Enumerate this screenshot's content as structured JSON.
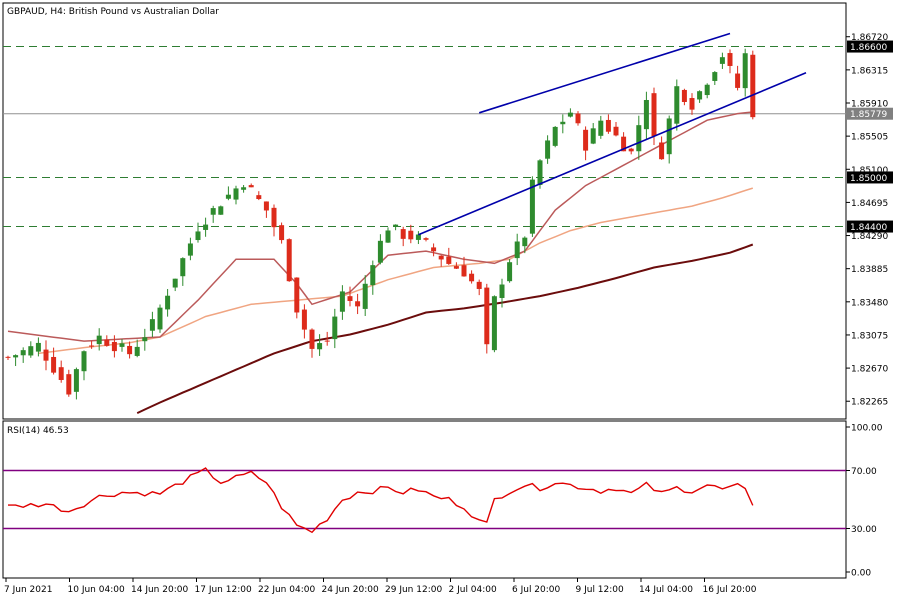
{
  "chart_data": {
    "type": "candlestick",
    "symbol": "GBPAUD",
    "timeframe": "H4",
    "description": "British Pound vs Australian Dollar",
    "header_title": "GBPAUD, H4:  British Pound vs Australian Dollar",
    "ylim": [
      1.8206,
      1.8712
    ],
    "price_ticks": [
      "1.86720",
      "1.86315",
      "1.85910",
      "1.85505",
      "1.85100",
      "1.84695",
      "1.84290",
      "1.83885",
      "1.83480",
      "1.83075",
      "1.82670",
      "1.82265"
    ],
    "x_tick_labels": [
      "7 Jun 2021",
      "10 Jun 04:00",
      "14 Jun 20:00",
      "17 Jun 12:00",
      "22 Jun 04:00",
      "24 Jun 20:00",
      "29 Jun 12:00",
      "2 Jul 04:00",
      "6 Jul 20:00",
      "9 Jul 12:00",
      "14 Jul 04:00",
      "16 Jul 20:00"
    ],
    "grid": false,
    "horizontal_levels": [
      {
        "label": "1.86600",
        "value": 1.866,
        "style": "dashed",
        "color": "#2e7d32",
        "label_bg": "#000000",
        "label_fg": "#ffffff"
      },
      {
        "label": "1.85779",
        "value": 1.85779,
        "style": "solid",
        "color": "#909090",
        "label_bg": "#808080",
        "label_fg": "#ffffff"
      },
      {
        "label": "1.85000",
        "value": 1.85,
        "style": "dashed",
        "color": "#2e7d32",
        "label_bg": "#000000",
        "label_fg": "#ffffff"
      },
      {
        "label": "1.84400",
        "value": 1.844,
        "style": "dashed",
        "color": "#2e7d32",
        "label_bg": "#000000",
        "label_fg": "#ffffff"
      }
    ],
    "candle_colors": {
      "up": "#2e8b2e",
      "down": "#dd2b1b"
    },
    "ma_colors": {
      "ma_fast": "#bb5a5a",
      "ma_mid": "#f0a582",
      "ma_slow": "#6b0c0c"
    },
    "channel_color": "#0000aa",
    "channel_lines": {
      "upper": {
        "from": [
          62,
          1.8579
        ],
        "to": [
          95,
          1.8676
        ]
      },
      "lower": {
        "from": [
          54,
          1.843
        ],
        "to": [
          105,
          1.8628
        ]
      }
    },
    "anchors": {
      "close": [
        [
          0,
          1.828
        ],
        [
          4,
          1.8295
        ],
        [
          8,
          1.824
        ],
        [
          10,
          1.829
        ],
        [
          12,
          1.8305
        ],
        [
          16,
          1.8285
        ],
        [
          19,
          1.832
        ],
        [
          22,
          1.838
        ],
        [
          25,
          1.844
        ],
        [
          28,
          1.847
        ],
        [
          31,
          1.8495
        ],
        [
          34,
          1.846
        ],
        [
          36,
          1.842
        ],
        [
          38,
          1.834
        ],
        [
          40,
          1.829
        ],
        [
          42,
          1.83
        ],
        [
          44,
          1.836
        ],
        [
          46,
          1.834
        ],
        [
          48,
          1.84
        ],
        [
          50,
          1.844
        ],
        [
          52,
          1.843
        ],
        [
          54,
          1.8425
        ],
        [
          56,
          1.841
        ],
        [
          58,
          1.8395
        ],
        [
          60,
          1.8385
        ],
        [
          62,
          1.836
        ],
        [
          63,
          1.829
        ],
        [
          64,
          1.835
        ],
        [
          66,
          1.84
        ],
        [
          68,
          1.843
        ],
        [
          69,
          1.849
        ],
        [
          70,
          1.852
        ],
        [
          72,
          1.856
        ],
        [
          74,
          1.858
        ],
        [
          76,
          1.854
        ],
        [
          78,
          1.857
        ],
        [
          80,
          1.855
        ],
        [
          82,
          1.853
        ],
        [
          84,
          1.86
        ],
        [
          85,
          1.8545
        ],
        [
          86,
          1.853
        ],
        [
          88,
          1.861
        ],
        [
          90,
          1.859
        ],
        [
          92,
          1.862
        ],
        [
          94,
          1.865
        ],
        [
          95,
          1.863
        ],
        [
          96,
          1.861
        ],
        [
          97,
          1.865
        ],
        [
          98,
          1.858
        ]
      ],
      "ma_fast": [
        [
          0,
          1.8312
        ],
        [
          10,
          1.83
        ],
        [
          20,
          1.8305
        ],
        [
          25,
          1.835
        ],
        [
          30,
          1.84
        ],
        [
          35,
          1.84
        ],
        [
          38,
          1.837
        ],
        [
          40,
          1.8345
        ],
        [
          45,
          1.836
        ],
        [
          50,
          1.8405
        ],
        [
          55,
          1.841
        ],
        [
          60,
          1.84
        ],
        [
          64,
          1.8395
        ],
        [
          68,
          1.841
        ],
        [
          72,
          1.846
        ],
        [
          76,
          1.849
        ],
        [
          80,
          1.851
        ],
        [
          84,
          1.853
        ],
        [
          88,
          1.855
        ],
        [
          92,
          1.857
        ],
        [
          96,
          1.8578
        ],
        [
          98,
          1.858
        ]
      ],
      "ma_mid": [
        [
          4,
          1.8285
        ],
        [
          10,
          1.8292
        ],
        [
          16,
          1.8298
        ],
        [
          20,
          1.8305
        ],
        [
          26,
          1.833
        ],
        [
          32,
          1.8345
        ],
        [
          38,
          1.835
        ],
        [
          44,
          1.8355
        ],
        [
          50,
          1.8375
        ],
        [
          56,
          1.839
        ],
        [
          62,
          1.8395
        ],
        [
          66,
          1.84
        ],
        [
          70,
          1.842
        ],
        [
          74,
          1.8435
        ],
        [
          78,
          1.8445
        ],
        [
          84,
          1.8455
        ],
        [
          90,
          1.8465
        ],
        [
          94,
          1.8475
        ],
        [
          98,
          1.8487
        ]
      ],
      "ma_slow": [
        [
          17,
          1.8212
        ],
        [
          20,
          1.8225
        ],
        [
          25,
          1.8245
        ],
        [
          30,
          1.8265
        ],
        [
          35,
          1.8285
        ],
        [
          40,
          1.83
        ],
        [
          45,
          1.8308
        ],
        [
          50,
          1.832
        ],
        [
          55,
          1.8335
        ],
        [
          60,
          1.834
        ],
        [
          65,
          1.8347
        ],
        [
          70,
          1.8355
        ],
        [
          75,
          1.8365
        ],
        [
          80,
          1.8377
        ],
        [
          85,
          1.839
        ],
        [
          90,
          1.8398
        ],
        [
          95,
          1.8408
        ],
        [
          98,
          1.8418
        ]
      ]
    },
    "rsi": {
      "label": "RSI(14) 46.53",
      "period": 14,
      "last": 46.53,
      "ylim": [
        0,
        100
      ],
      "ticks": [
        "100.00",
        "70.00",
        "30.00",
        "0.00"
      ],
      "levels": [
        70,
        30
      ],
      "line_color": "#e00000",
      "level_color": "#800080",
      "anchors": [
        [
          0,
          45
        ],
        [
          5,
          47
        ],
        [
          8,
          42
        ],
        [
          12,
          52
        ],
        [
          15,
          55
        ],
        [
          20,
          54
        ],
        [
          24,
          65
        ],
        [
          26,
          70
        ],
        [
          28,
          62
        ],
        [
          32,
          68
        ],
        [
          34,
          62
        ],
        [
          36,
          45
        ],
        [
          38,
          32
        ],
        [
          40,
          28
        ],
        [
          42,
          37
        ],
        [
          44,
          50
        ],
        [
          46,
          55
        ],
        [
          48,
          56
        ],
        [
          50,
          58
        ],
        [
          52,
          55
        ],
        [
          54,
          57
        ],
        [
          56,
          52
        ],
        [
          58,
          50
        ],
        [
          60,
          45
        ],
        [
          62,
          35
        ],
        [
          63,
          33
        ],
        [
          64,
          50
        ],
        [
          66,
          56
        ],
        [
          68,
          60
        ],
        [
          70,
          58
        ],
        [
          72,
          62
        ],
        [
          74,
          60
        ],
        [
          76,
          58
        ],
        [
          78,
          56
        ],
        [
          80,
          58
        ],
        [
          82,
          54
        ],
        [
          84,
          60
        ],
        [
          86,
          54
        ],
        [
          88,
          58
        ],
        [
          90,
          56
        ],
        [
          92,
          60
        ],
        [
          94,
          57
        ],
        [
          96,
          59
        ],
        [
          97,
          56
        ],
        [
          98,
          47
        ]
      ]
    }
  }
}
